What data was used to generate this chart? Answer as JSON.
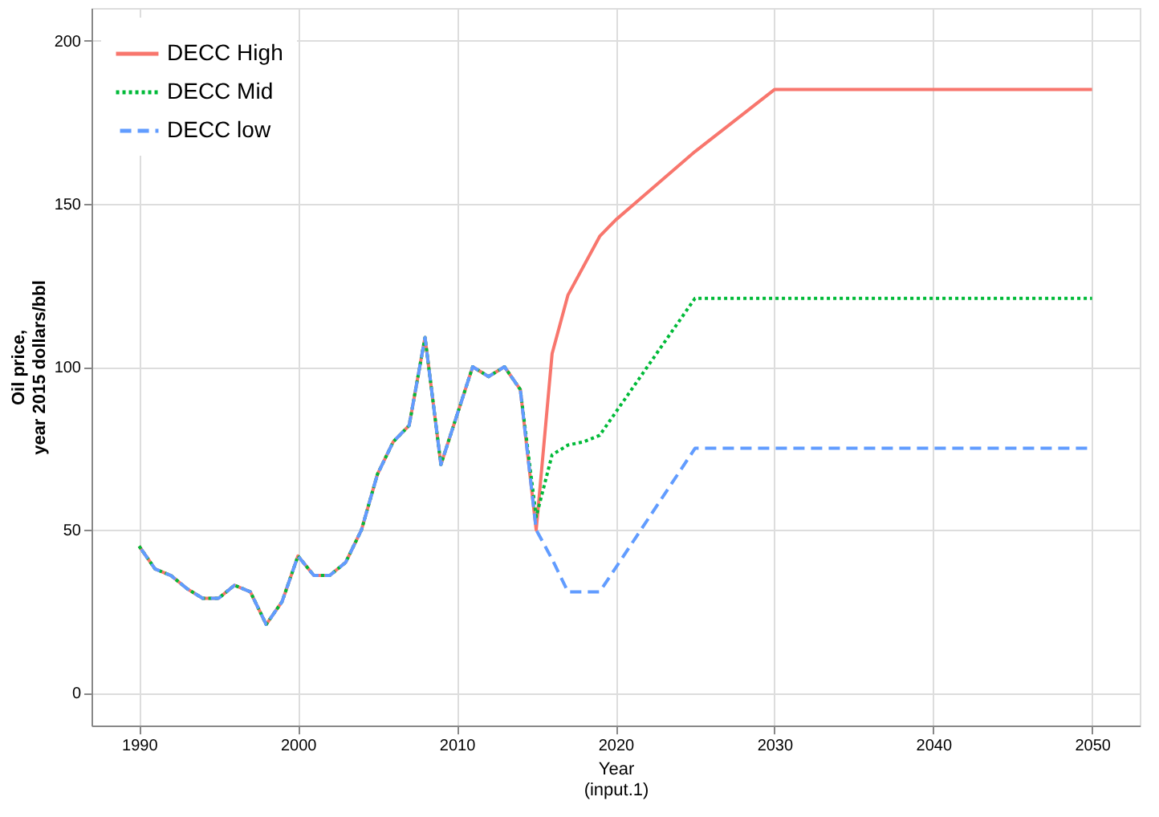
{
  "chart_data": {
    "type": "line",
    "xlabel": "Year\n(input.1)",
    "ylabel": "Oil price,\nyear 2015 dollars/bbl",
    "xlim": [
      1987,
      2053
    ],
    "xticks": [
      1990,
      2000,
      2010,
      2020,
      2030,
      2040,
      2050
    ],
    "ylim": [
      -10,
      210
    ],
    "yticks": [
      0,
      50,
      100,
      150,
      200
    ],
    "grid": true,
    "legend": "top left",
    "series": [
      {
        "name": "DECC High",
        "color": "#f8766d",
        "line_style": "solid",
        "x": [
          1990,
          1991,
          1992,
          1993,
          1994,
          1995,
          1996,
          1997,
          1998,
          1999,
          2000,
          2001,
          2002,
          2003,
          2004,
          2005,
          2006,
          2007,
          2008,
          2009,
          2010,
          2011,
          2012,
          2013,
          2014,
          2015,
          2016,
          2017,
          2019,
          2020,
          2025,
          2030,
          2050
        ],
        "values": [
          45,
          38,
          36,
          32,
          29,
          29,
          33,
          31,
          21,
          28,
          42,
          36,
          36,
          40,
          50,
          67,
          77,
          82,
          109,
          70,
          85,
          100,
          97,
          100,
          93,
          50,
          104,
          122,
          140,
          145,
          166,
          185,
          185
        ]
      },
      {
        "name": "DECC Mid",
        "color": "#00ba38",
        "line_style": "dotted",
        "x": [
          1990,
          1991,
          1992,
          1993,
          1994,
          1995,
          1996,
          1997,
          1998,
          1999,
          2000,
          2001,
          2002,
          2003,
          2004,
          2005,
          2006,
          2007,
          2008,
          2009,
          2010,
          2011,
          2012,
          2013,
          2014,
          2015,
          2016,
          2017,
          2018,
          2019,
          2025,
          2050
        ],
        "values": [
          45,
          38,
          36,
          32,
          29,
          29,
          33,
          31,
          21,
          28,
          42,
          36,
          36,
          40,
          50,
          67,
          77,
          82,
          109,
          70,
          85,
          100,
          97,
          100,
          93,
          54,
          73,
          76,
          77,
          79,
          121,
          121
        ]
      },
      {
        "name": "DECC low",
        "color": "#619cff",
        "line_style": "dashed",
        "x": [
          1990,
          1991,
          1992,
          1993,
          1994,
          1995,
          1996,
          1997,
          1998,
          1999,
          2000,
          2001,
          2002,
          2003,
          2004,
          2005,
          2006,
          2007,
          2008,
          2009,
          2010,
          2011,
          2012,
          2013,
          2014,
          2015,
          2016,
          2017,
          2018,
          2019,
          2025,
          2050
        ],
        "values": [
          45,
          38,
          36,
          32,
          29,
          29,
          33,
          31,
          21,
          28,
          42,
          36,
          36,
          40,
          50,
          67,
          77,
          82,
          109,
          70,
          85,
          100,
          97,
          100,
          93,
          50,
          41,
          31,
          31,
          31,
          75,
          75
        ]
      }
    ]
  }
}
